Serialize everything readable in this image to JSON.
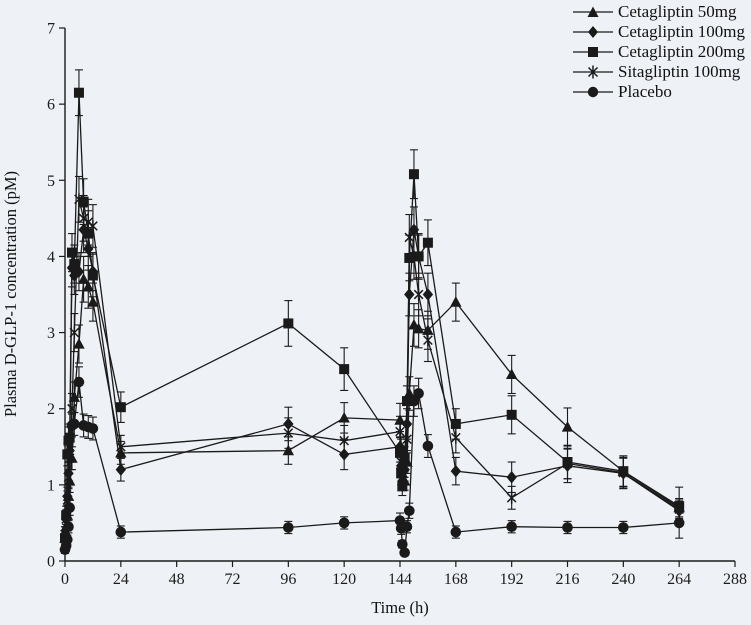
{
  "figure": {
    "background": "#eef1f6",
    "ink_color": "#1a1a1a"
  },
  "chart_data": {
    "type": "line",
    "title": "",
    "xlabel": "Time (h)",
    "ylabel": "Plasma D-GLP-1 concentration (pM)",
    "xlim": [
      0,
      288
    ],
    "ylim": [
      0,
      7
    ],
    "x_ticks": [
      0,
      24,
      48,
      72,
      96,
      120,
      144,
      168,
      192,
      216,
      240,
      264,
      288
    ],
    "y_ticks": [
      0,
      1,
      2,
      3,
      4,
      5,
      6,
      7
    ],
    "grid": false,
    "legend_position": "top-inside-right",
    "error_bars": true,
    "x_shared": [
      0,
      0.5,
      1,
      1.5,
      2,
      3,
      4,
      6,
      8,
      10,
      12,
      24,
      96,
      120,
      144,
      144.5,
      145,
      146,
      147,
      148,
      150,
      152,
      156,
      168,
      192,
      216,
      240,
      264
    ],
    "series": [
      {
        "name": "Cetagliptin 50mg",
        "marker": "triangle",
        "y": [
          0.3,
          0.45,
          0.6,
          0.85,
          1.05,
          1.35,
          2.15,
          2.85,
          3.7,
          3.6,
          3.4,
          1.42,
          1.45,
          1.88,
          1.85,
          1.45,
          1.15,
          1.05,
          1.3,
          2.2,
          3.1,
          3.05,
          3.03,
          3.4,
          2.45,
          1.76,
          1.18,
          0.7
        ],
        "err": [
          0.1,
          0.1,
          0.12,
          0.12,
          0.15,
          0.15,
          0.2,
          0.25,
          0.3,
          0.28,
          0.25,
          0.15,
          0.18,
          0.2,
          0.22,
          0.15,
          0.12,
          0.12,
          0.15,
          0.22,
          0.28,
          0.25,
          0.25,
          0.25,
          0.25,
          0.25,
          0.2,
          0.12
        ]
      },
      {
        "name": "Cetagliptin 100mg",
        "marker": "diamond",
        "y": [
          0.35,
          0.55,
          0.85,
          1.15,
          1.45,
          3.85,
          3.75,
          3.8,
          4.35,
          4.1,
          3.8,
          1.2,
          1.8,
          1.4,
          1.5,
          1.25,
          1.05,
          1.2,
          1.8,
          3.5,
          4.35,
          4.0,
          3.5,
          1.18,
          1.1,
          1.25,
          1.15,
          0.66
        ],
        "err": [
          0.1,
          0.12,
          0.12,
          0.15,
          0.15,
          0.25,
          0.25,
          0.25,
          0.3,
          0.28,
          0.25,
          0.15,
          0.22,
          0.2,
          0.2,
          0.15,
          0.12,
          0.15,
          0.2,
          0.28,
          0.3,
          0.28,
          0.28,
          0.18,
          0.2,
          0.22,
          0.2,
          0.12
        ]
      },
      {
        "name": "Cetagliptin 200mg",
        "marker": "square",
        "y": [
          0.3,
          0.6,
          1.4,
          1.58,
          1.62,
          4.05,
          3.9,
          6.15,
          4.72,
          4.3,
          3.75,
          2.02,
          3.12,
          2.52,
          1.42,
          1.15,
          0.98,
          1.35,
          2.1,
          3.98,
          5.08,
          4.0,
          4.18,
          1.8,
          1.92,
          1.3,
          1.18,
          0.72
        ],
        "err": [
          0.1,
          0.12,
          0.15,
          0.18,
          0.18,
          0.25,
          0.25,
          0.3,
          0.3,
          0.3,
          0.28,
          0.2,
          0.3,
          0.28,
          0.2,
          0.15,
          0.12,
          0.15,
          0.2,
          0.3,
          0.32,
          0.3,
          0.3,
          0.2,
          0.25,
          0.22,
          0.2,
          0.25
        ]
      },
      {
        "name": "Sitagliptin 100mg",
        "marker": "asterisk",
        "y": [
          0.35,
          0.55,
          0.8,
          1.1,
          1.35,
          2.0,
          3.0,
          4.75,
          4.5,
          4.45,
          4.4,
          1.5,
          1.68,
          1.58,
          1.7,
          1.3,
          1.1,
          1.25,
          1.6,
          4.25,
          4.0,
          3.5,
          2.9,
          1.62,
          0.83,
          1.28,
          1.16,
          0.68
        ],
        "err": [
          0.1,
          0.1,
          0.12,
          0.15,
          0.15,
          0.2,
          0.25,
          0.3,
          0.3,
          0.3,
          0.28,
          0.15,
          0.2,
          0.2,
          0.2,
          0.15,
          0.12,
          0.15,
          0.18,
          0.3,
          0.3,
          0.28,
          0.28,
          0.2,
          0.15,
          0.2,
          0.2,
          0.12
        ]
      },
      {
        "name": "Placebo",
        "marker": "circle",
        "y": [
          0.15,
          0.2,
          0.28,
          0.45,
          0.7,
          1.78,
          1.8,
          2.35,
          1.78,
          1.76,
          1.74,
          0.38,
          0.44,
          0.5,
          0.53,
          0.43,
          0.22,
          0.11,
          0.45,
          0.66,
          2.1,
          2.2,
          1.51,
          0.38,
          0.45,
          0.44,
          0.44,
          0.5
        ],
        "err": [
          0.05,
          0.05,
          0.06,
          0.08,
          0.1,
          0.15,
          0.15,
          0.2,
          0.15,
          0.15,
          0.15,
          0.08,
          0.08,
          0.08,
          0.1,
          0.08,
          0.05,
          0.04,
          0.08,
          0.1,
          0.2,
          0.2,
          0.15,
          0.08,
          0.08,
          0.08,
          0.08,
          0.2
        ]
      }
    ]
  }
}
